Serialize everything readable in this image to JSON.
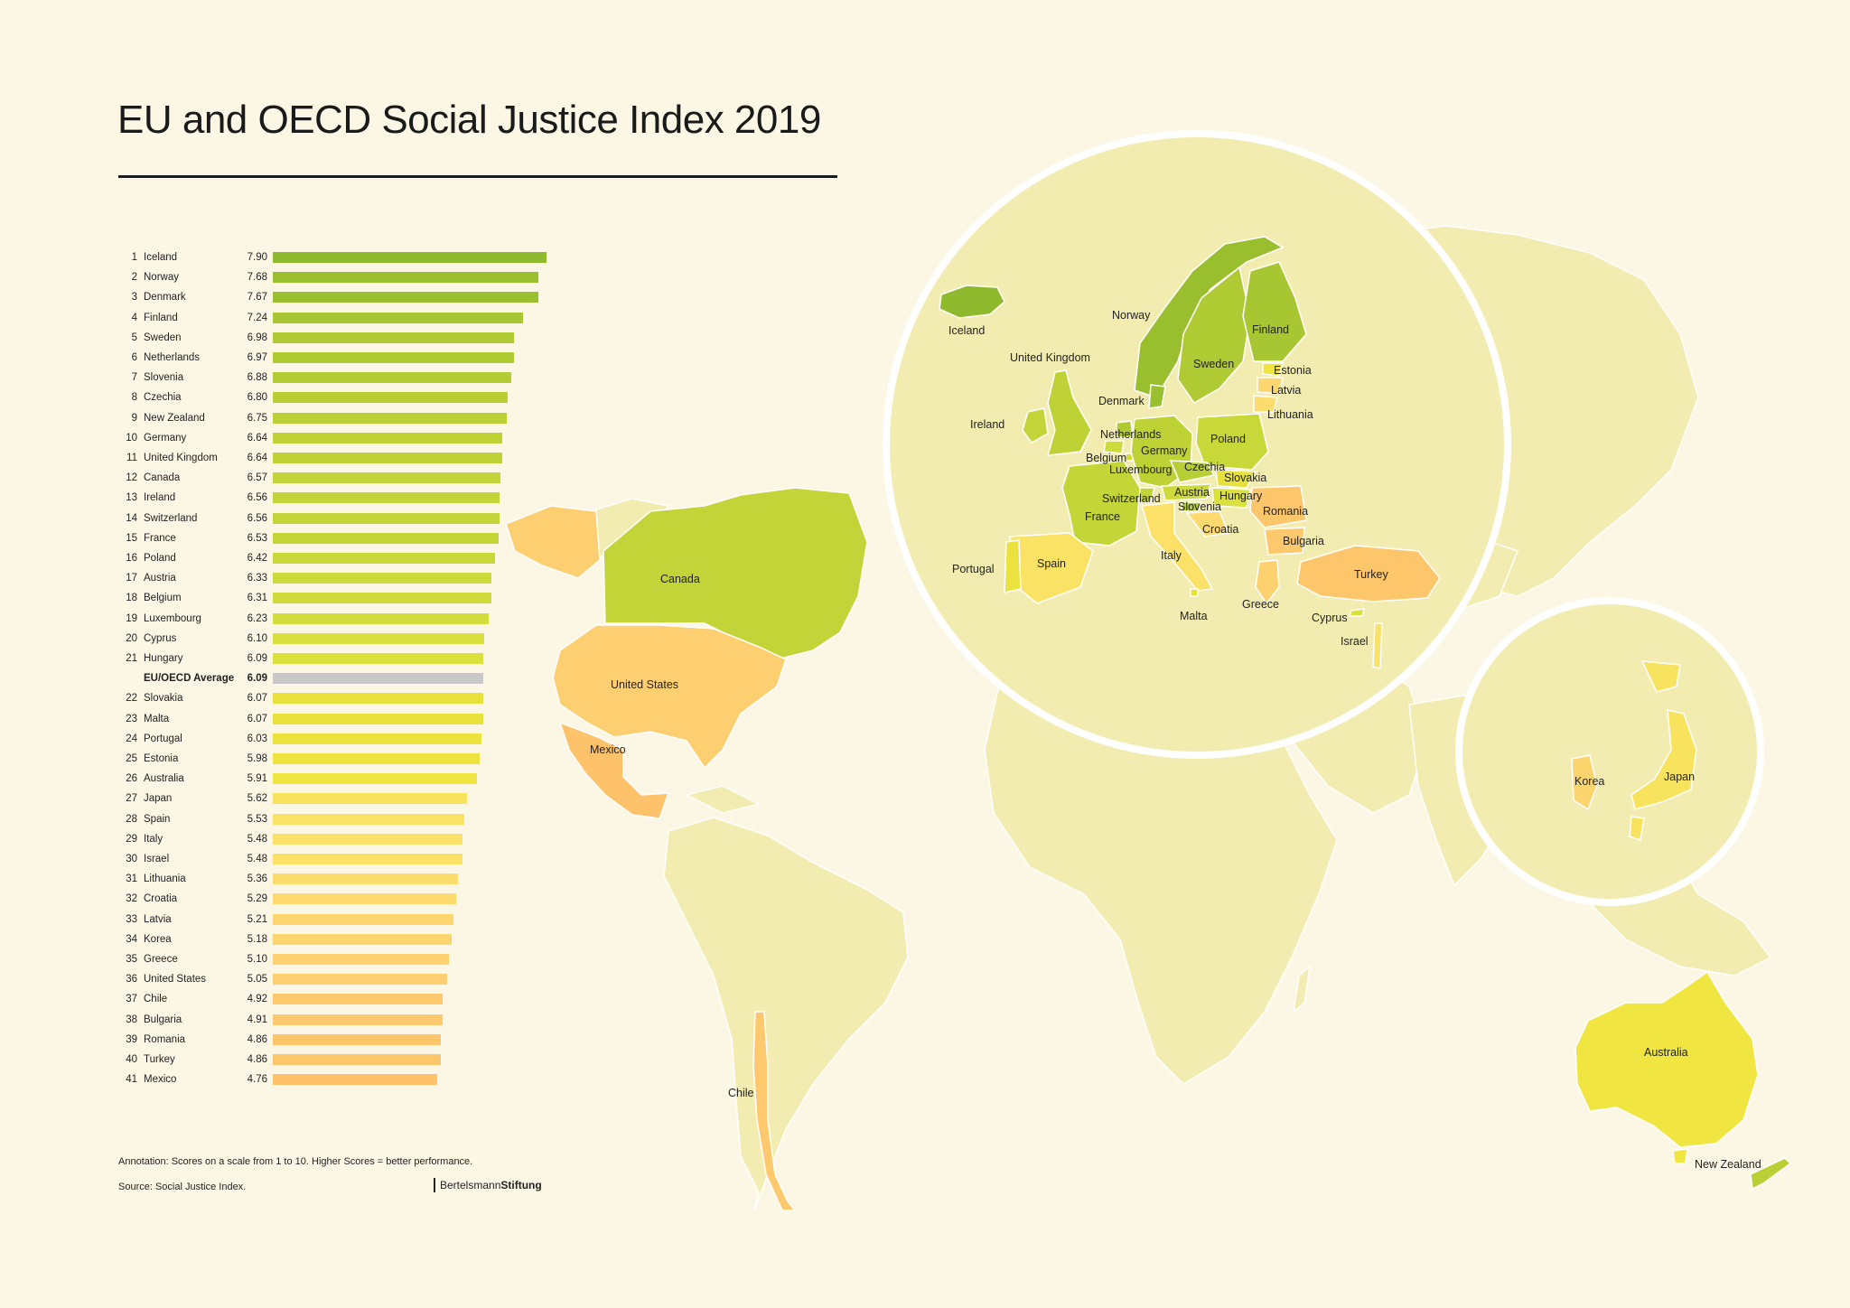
{
  "title": "EU and OECD Social Justice Index 2019",
  "annotation": "Annotation: Scores on a scale from 1 to 10. Higher Scores = better performance.",
  "source": "Source: Social Justice Index.",
  "brand": {
    "regular": "Bertelsmann",
    "bold": "Stiftung"
  },
  "colors": {
    "background": "#fcf7e4",
    "average_bar": "#c8c8c8",
    "non_member": "#f3ecb0",
    "lake": "#fcf7e4",
    "circle": "#ffffff"
  },
  "chart_data": {
    "type": "bar",
    "orientation": "horizontal",
    "xlim": [
      0,
      10
    ],
    "rows": [
      {
        "rank": "1",
        "country": "Iceland",
        "value": 7.9,
        "score": "7.90",
        "color": "#8fba2e"
      },
      {
        "rank": "2",
        "country": "Norway",
        "value": 7.68,
        "score": "7.68",
        "color": "#99bf2f"
      },
      {
        "rank": "3",
        "country": "Denmark",
        "value": 7.67,
        "score": "7.67",
        "color": "#9ac02f"
      },
      {
        "rank": "4",
        "country": "Finland",
        "value": 7.24,
        "score": "7.24",
        "color": "#a7c632"
      },
      {
        "rank": "5",
        "country": "Sweden",
        "value": 6.98,
        "score": "6.98",
        "color": "#afca33"
      },
      {
        "rank": "6",
        "country": "Netherlands",
        "value": 6.97,
        "score": "6.97",
        "color": "#afca33"
      },
      {
        "rank": "7",
        "country": "Slovenia",
        "value": 6.88,
        "score": "6.88",
        "color": "#b3cc34"
      },
      {
        "rank": "8",
        "country": "Czechia",
        "value": 6.8,
        "score": "6.80",
        "color": "#b7ce35"
      },
      {
        "rank": "9",
        "country": "New Zealand",
        "value": 6.75,
        "score": "6.75",
        "color": "#b9cf35"
      },
      {
        "rank": "10",
        "country": "Germany",
        "value": 6.64,
        "score": "6.64",
        "color": "#bed236"
      },
      {
        "rank": "11",
        "country": "United Kingdom",
        "value": 6.64,
        "score": "6.64",
        "color": "#bed236"
      },
      {
        "rank": "12",
        "country": "Canada",
        "value": 6.57,
        "score": "6.57",
        "color": "#c2d437"
      },
      {
        "rank": "13",
        "country": "Ireland",
        "value": 6.56,
        "score": "6.56",
        "color": "#c2d437"
      },
      {
        "rank": "14",
        "country": "Switzerland",
        "value": 6.56,
        "score": "6.56",
        "color": "#c2d437"
      },
      {
        "rank": "15",
        "country": "France",
        "value": 6.53,
        "score": "6.53",
        "color": "#c4d538"
      },
      {
        "rank": "16",
        "country": "Poland",
        "value": 6.42,
        "score": "6.42",
        "color": "#c9d839"
      },
      {
        "rank": "17",
        "country": "Austria",
        "value": 6.33,
        "score": "6.33",
        "color": "#cdda3a"
      },
      {
        "rank": "18",
        "country": "Belgium",
        "value": 6.31,
        "score": "6.31",
        "color": "#cfdb3a"
      },
      {
        "rank": "19",
        "country": "Luxembourg",
        "value": 6.23,
        "score": "6.23",
        "color": "#d3dd3b"
      },
      {
        "rank": "20",
        "country": "Cyprus",
        "value": 6.1,
        "score": "6.10",
        "color": "#d9df3c"
      },
      {
        "rank": "21",
        "country": "Hungary",
        "value": 6.09,
        "score": "6.09",
        "color": "#dae03c"
      },
      {
        "rank": "",
        "country": "EU/OECD Average",
        "value": 6.09,
        "score": "6.09",
        "color": "#c8c8c8",
        "average": true
      },
      {
        "rank": "22",
        "country": "Slovakia",
        "value": 6.07,
        "score": "6.07",
        "color": "#e8e13c"
      },
      {
        "rank": "23",
        "country": "Malta",
        "value": 6.07,
        "score": "6.07",
        "color": "#e8e13c"
      },
      {
        "rank": "24",
        "country": "Portugal",
        "value": 6.03,
        "score": "6.03",
        "color": "#ebe23d"
      },
      {
        "rank": "25",
        "country": "Estonia",
        "value": 5.98,
        "score": "5.98",
        "color": "#eee33f"
      },
      {
        "rank": "26",
        "country": "Australia",
        "value": 5.91,
        "score": "5.91",
        "color": "#f1e542"
      },
      {
        "rank": "27",
        "country": "Japan",
        "value": 5.62,
        "score": "5.62",
        "color": "#f8e35e"
      },
      {
        "rank": "28",
        "country": "Spain",
        "value": 5.53,
        "score": "5.53",
        "color": "#fae265"
      },
      {
        "rank": "29",
        "country": "Italy",
        "value": 5.48,
        "score": "5.48",
        "color": "#fbe168"
      },
      {
        "rank": "30",
        "country": "Israel",
        "value": 5.48,
        "score": "5.48",
        "color": "#fbe168"
      },
      {
        "rank": "31",
        "country": "Lithuania",
        "value": 5.36,
        "score": "5.36",
        "color": "#fcdc6c"
      },
      {
        "rank": "32",
        "country": "Croatia",
        "value": 5.29,
        "score": "5.29",
        "color": "#fdd96e"
      },
      {
        "rank": "33",
        "country": "Latvia",
        "value": 5.21,
        "score": "5.21",
        "color": "#fdd66f"
      },
      {
        "rank": "34",
        "country": "Korea",
        "value": 5.18,
        "score": "5.18",
        "color": "#fdd56f"
      },
      {
        "rank": "35",
        "country": "Greece",
        "value": 5.1,
        "score": "5.10",
        "color": "#fed170"
      },
      {
        "rank": "36",
        "country": "United States",
        "value": 5.05,
        "score": "5.05",
        "color": "#fecf70"
      },
      {
        "rank": "37",
        "country": "Chile",
        "value": 4.92,
        "score": "4.92",
        "color": "#fec96c"
      },
      {
        "rank": "38",
        "country": "Bulgaria",
        "value": 4.91,
        "score": "4.91",
        "color": "#fec86c"
      },
      {
        "rank": "39",
        "country": "Romania",
        "value": 4.86,
        "score": "4.86",
        "color": "#fec66b"
      },
      {
        "rank": "40",
        "country": "Turkey",
        "value": 4.86,
        "score": "4.86",
        "color": "#fec66b"
      },
      {
        "rank": "41",
        "country": "Mexico",
        "value": 4.76,
        "score": "4.76",
        "color": "#fec26a"
      }
    ]
  },
  "map": {
    "labels": {
      "iceland": "Iceland",
      "norway": "Norway",
      "finland": "Finland",
      "sweden": "Sweden",
      "united_kingdom": "United Kingdom",
      "estonia": "Estonia",
      "latvia": "Latvia",
      "denmark": "Denmark",
      "lithuania": "Lithuania",
      "ireland": "Ireland",
      "netherlands": "Netherlands",
      "poland": "Poland",
      "germany": "Germany",
      "belgium": "Belgium",
      "luxembourg": "Luxembourg",
      "czechia": "Czechia",
      "slovakia": "Slovakia",
      "austria": "Austria",
      "hungary": "Hungary",
      "switzerland": "Switzerland",
      "slovenia": "Slovenia",
      "romania": "Romania",
      "france": "France",
      "croatia": "Croatia",
      "bulgaria": "Bulgaria",
      "italy": "Italy",
      "portugal": "Portugal",
      "spain": "Spain",
      "turkey": "Turkey",
      "greece": "Greece",
      "malta": "Malta",
      "cyprus": "Cyprus",
      "israel": "Israel",
      "canada": "Canada",
      "united_states": "United States",
      "mexico": "Mexico",
      "chile": "Chile",
      "korea": "Korea",
      "japan": "Japan",
      "australia": "Australia",
      "new_zealand": "New Zealand"
    }
  }
}
